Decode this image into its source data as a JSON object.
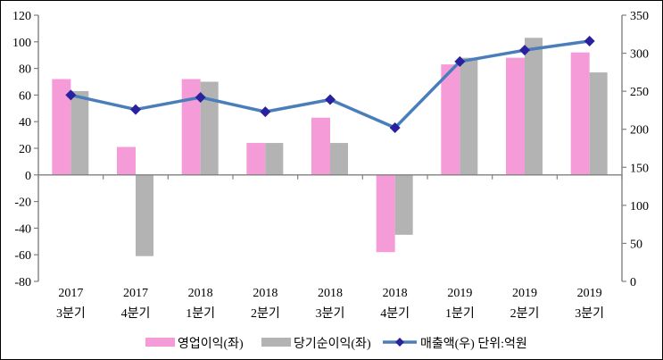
{
  "chart": {
    "background": "#FFFFFF",
    "border_color": "#000000",
    "axis_color": "#808080",
    "text_color": "#000000"
  },
  "chart_data": {
    "type": "combo-bar-line",
    "title": "",
    "xlabel": "",
    "ylabel_left": "",
    "ylabel_right": "",
    "grid": "off",
    "legend_position": "bottom",
    "unit_note": "단위:억원",
    "categories": [
      {
        "year": "2017",
        "quarter": "3분기"
      },
      {
        "year": "2017",
        "quarter": "4분기"
      },
      {
        "year": "2018",
        "quarter": "1분기"
      },
      {
        "year": "2018",
        "quarter": "2분기"
      },
      {
        "year": "2018",
        "quarter": "3분기"
      },
      {
        "year": "2018",
        "quarter": "4분기"
      },
      {
        "year": "2019",
        "quarter": "1분기"
      },
      {
        "year": "2019",
        "quarter": "2분기"
      },
      {
        "year": "2019",
        "quarter": "3분기"
      }
    ],
    "series": [
      {
        "name": "영업이익(좌)",
        "type": "bar",
        "axis": "left",
        "color": "#F59BD8",
        "values": [
          72,
          21,
          72,
          24,
          43,
          -58,
          83,
          88,
          92
        ]
      },
      {
        "name": "당기순이익(좌)",
        "type": "bar",
        "axis": "left",
        "color": "#B3B3B3",
        "values": [
          63,
          -61,
          70,
          24,
          24,
          -45,
          88,
          103,
          77
        ]
      },
      {
        "name": "매출액(우)",
        "type": "line",
        "axis": "right",
        "color": "#4A7EBB",
        "marker": "diamond",
        "marker_color": "#2A219E",
        "values": [
          245,
          226,
          242,
          223,
          239,
          202,
          289,
          304,
          316
        ]
      }
    ],
    "left_axis": {
      "min": -80,
      "max": 120,
      "step": 20,
      "ticks": [
        120,
        100,
        80,
        60,
        40,
        20,
        0,
        -20,
        -40,
        -60,
        -80
      ]
    },
    "right_axis": {
      "min": 0,
      "max": 350,
      "step": 50,
      "ticks": [
        350,
        300,
        250,
        200,
        150,
        100,
        50,
        0
      ]
    },
    "legend": [
      {
        "label": "영업이익(좌)",
        "swatch": "bar",
        "color": "#F59BD8"
      },
      {
        "label": "당기순이익(좌)",
        "swatch": "bar",
        "color": "#B3B3B3"
      },
      {
        "label": "매출액(우)",
        "swatch": "line-diamond",
        "color": "#4A7EBB",
        "marker_color": "#2A219E"
      }
    ]
  }
}
